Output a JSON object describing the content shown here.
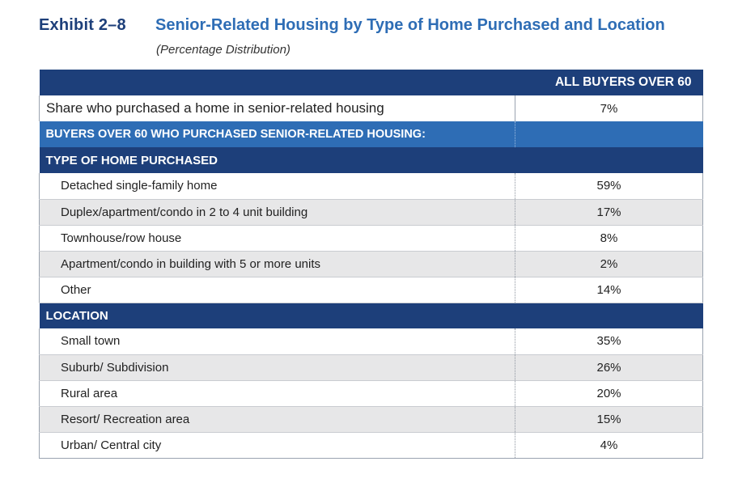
{
  "exhibit": {
    "label": "Exhibit 2–8",
    "title": "Senior-Related Housing by Type of Home Purchased and Location",
    "subtitle": "(Percentage Distribution)"
  },
  "table": {
    "column_header": "ALL BUYERS OVER 60",
    "share_row": {
      "label": "Share who purchased a home in senior-related housing",
      "value": "7%"
    },
    "subheader": "BUYERS OVER 60 WHO PURCHASED SENIOR-RELATED HOUSING:",
    "sections": [
      {
        "title": "TYPE OF HOME PURCHASED",
        "rows": [
          {
            "label": "Detached single-family home",
            "value": "59%"
          },
          {
            "label": "Duplex/apartment/condo in 2 to 4 unit building",
            "value": "17%"
          },
          {
            "label": "Townhouse/row house",
            "value": "8%"
          },
          {
            "label": "Apartment/condo in building with 5 or more units",
            "value": "2%"
          },
          {
            "label": "Other",
            "value": "14%"
          }
        ]
      },
      {
        "title": "LOCATION",
        "rows": [
          {
            "label": "Small town",
            "value": "35%"
          },
          {
            "label": "Suburb/ Subdivision",
            "value": "26%"
          },
          {
            "label": "Rural area",
            "value": "20%"
          },
          {
            "label": "Resort/ Recreation  area",
            "value": "15%"
          },
          {
            "label": "Urban/ Central city",
            "value": "4%"
          }
        ]
      }
    ]
  }
}
